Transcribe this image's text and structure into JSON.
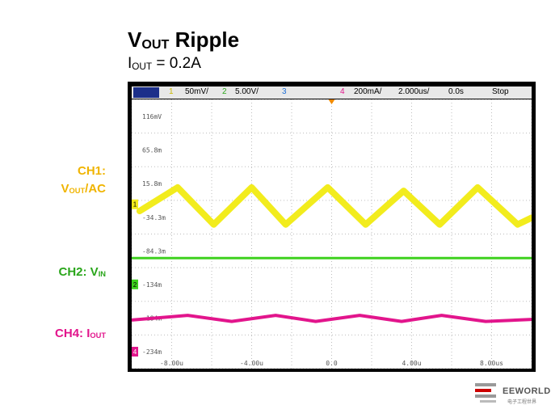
{
  "title": {
    "main": "V",
    "sub": "OUT",
    "rest": " Ripple"
  },
  "subtitle": {
    "main": "I",
    "sub": "OUT",
    "rest": " = 0.2A"
  },
  "channel_labels": {
    "ch1_line1": "CH1:",
    "ch1_line2_main": "V",
    "ch1_line2_sub": "OUT",
    "ch1_line2_rest": "/AC",
    "ch2_main": "CH2: V",
    "ch2_sub": "IN",
    "ch4_main": "CH4: I",
    "ch4_sub": "OUT"
  },
  "status_bar": {
    "ch_badge": "",
    "ch1_num": "1",
    "ch1_scale": "50mV/",
    "ch2_num": "2",
    "ch2_scale": "5.00V/",
    "ch3_num": "3",
    "ch4_num": "4",
    "ch4_scale": "200mA/",
    "timebase": "2.000us/",
    "delay": "0.0s",
    "run_state": "Stop"
  },
  "colors": {
    "ch1": "#f2ec1d",
    "ch2": "#3ed11f",
    "ch4": "#e2158c",
    "ch3": "#1d6fd6",
    "grid": "#bdbdbd"
  },
  "logo": {
    "text": "EEWORLD",
    "sub": "电子工程世界"
  },
  "chart_data": {
    "type": "line",
    "x_unit": "us",
    "xlim": [
      -10,
      10
    ],
    "ylim": [
      -259.2,
      140.8
    ],
    "y_tick_labels": [
      "116mV",
      "65.8m",
      "15.8m",
      "-34.3m",
      "-84.3m",
      "-134m",
      "-184m",
      "-234m"
    ],
    "y_tick_values": [
      115.8,
      65.8,
      15.8,
      -34.3,
      -84.3,
      -134.2,
      -184.2,
      -234.2
    ],
    "x_tick_labels": [
      "-8.00u",
      "-4.00u",
      "0.0",
      "4.00u",
      "8.00us"
    ],
    "x_tick_values": [
      -8,
      -4,
      0,
      4,
      8
    ],
    "series": [
      {
        "name": "CH1",
        "x": [
          -9.6,
          -7.7,
          -5.9,
          -4.0,
          -2.3,
          -0.2,
          1.7,
          3.6,
          5.4,
          7.3,
          9.3,
          10.0
        ],
        "y": [
          -25,
          10,
          -45,
          10,
          -45,
          10,
          -45,
          5,
          -45,
          10,
          -45,
          -35
        ]
      },
      {
        "name": "CH2",
        "x": [
          -10,
          10
        ],
        "y": [
          -95,
          -95
        ]
      },
      {
        "name": "CH4",
        "x": [
          -10,
          -7.2,
          -5.0,
          -2.8,
          -0.8,
          1.4,
          3.5,
          5.5,
          7.7,
          10
        ],
        "y": [
          -187,
          -180,
          -189,
          -180,
          -189,
          -180,
          -189,
          -180,
          -189,
          -186
        ]
      }
    ]
  }
}
